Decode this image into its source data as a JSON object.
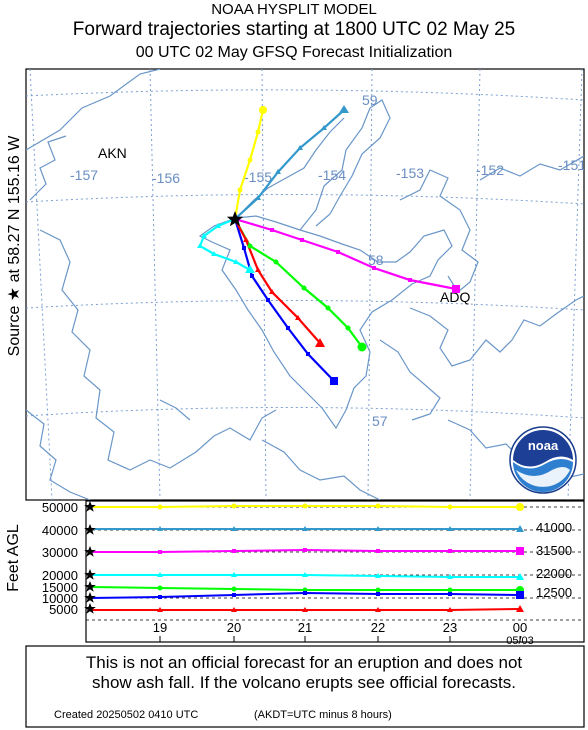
{
  "header": {
    "line1": "NOAA HYSPLIT MODEL",
    "line2": "Forward trajectories starting at 1800 UTC 02 May 25",
    "line3": "00 UTC 02 May     GFSQ  Forecast Initialization"
  },
  "source_label": "Source ★ at   58.27 N  155.16 W",
  "map": {
    "place_labels": [
      "AKN",
      "ADQ"
    ],
    "lon_labels": [
      "-157",
      "-156",
      "-155",
      "-154",
      "-153",
      "-152",
      "-151"
    ],
    "lat_labels": [
      "59",
      "58",
      "57"
    ],
    "grid_color": "#7b9fd1",
    "coast_color": "#6a96c8",
    "logo_text": "noaa"
  },
  "height_axis": {
    "label": "Feet AGL",
    "left_ticks": [
      "50000",
      "40000",
      "30000",
      "20000",
      "15000",
      "10000",
      "5000"
    ],
    "right_labels": [
      "41000",
      "31500",
      "22000",
      "12500"
    ],
    "time_ticks": [
      "19",
      "20",
      "21",
      "22",
      "23",
      "00"
    ],
    "date_label": "05/03"
  },
  "trajectories": [
    {
      "color": "#ffff00",
      "marker": "circle",
      "start_height_ft": 50000
    },
    {
      "color": "#3399cc",
      "marker": "triangle",
      "start_height_ft": 41000
    },
    {
      "color": "#ff00ff",
      "marker": "square",
      "start_height_ft": 31500
    },
    {
      "color": "#00ffff",
      "marker": "triangle",
      "start_height_ft": 22000
    },
    {
      "color": "#00ff00",
      "marker": "circle",
      "start_height_ft": 15000
    },
    {
      "color": "#0000ff",
      "marker": "square",
      "start_height_ft": 12500
    },
    {
      "color": "#ff0000",
      "marker": "triangle",
      "start_height_ft": 5000
    }
  ],
  "disclaimer": {
    "line1": "This is not an official forecast for an eruption and does not",
    "line2": "show ash fall. If the volcano erupts see official forecasts."
  },
  "footer": {
    "created": "Created 20250502 0410 UTC",
    "note": "(AKDT=UTC minus 8 hours)"
  }
}
